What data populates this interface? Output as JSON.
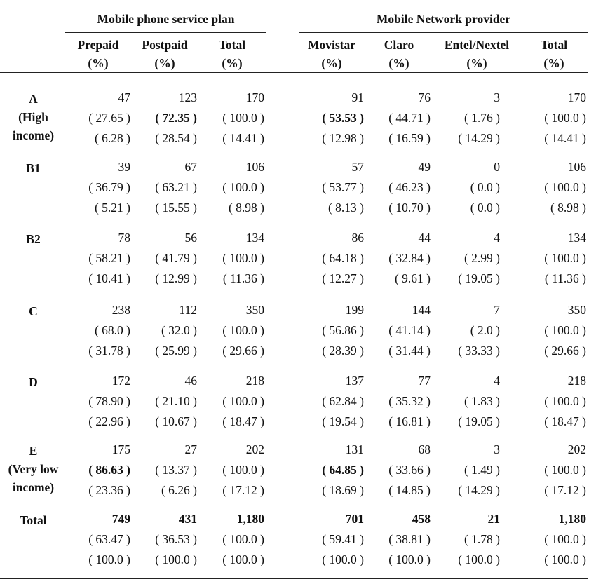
{
  "groups": {
    "plan": "Mobile phone service plan",
    "provider": "Mobile Network provider"
  },
  "columns": [
    {
      "line1": "Prepaid",
      "line2": "(%)"
    },
    {
      "line1": "Postpaid",
      "line2": "(%)"
    },
    {
      "line1": "Total",
      "line2": "(%)"
    },
    {
      "line1": "Movistar",
      "line2": "(%)"
    },
    {
      "line1": "Claro",
      "line2": "(%)"
    },
    {
      "line1": "Entel/Nextel",
      "line2": "(%)"
    },
    {
      "line1": "Total",
      "line2": "(%)"
    }
  ],
  "rows": [
    {
      "label": [
        "A",
        "(High",
        "income)"
      ],
      "values": [
        [
          "47",
          "123",
          "170",
          "91",
          "76",
          "3",
          "170"
        ],
        [
          "( 27.65 )",
          "( 72.35 )",
          "( 100.0 )",
          "( 53.53 )",
          "( 44.71 )",
          "( 1.76 )",
          "( 100.0 )"
        ],
        [
          "( 6.28 )",
          "( 28.54 )",
          "( 14.41 )",
          "( 12.98 )",
          "( 16.59 )",
          "( 14.29 )",
          "( 14.41 )"
        ]
      ],
      "bold": [
        [
          false,
          false,
          false,
          false,
          false,
          false,
          false
        ],
        [
          false,
          true,
          false,
          true,
          false,
          false,
          false
        ],
        [
          false,
          false,
          false,
          false,
          false,
          false,
          false
        ]
      ]
    },
    {
      "label": [
        "B1"
      ],
      "values": [
        [
          "39",
          "67",
          "106",
          "57",
          "49",
          "0",
          "106"
        ],
        [
          "( 36.79 )",
          "( 63.21 )",
          "( 100.0 )",
          "( 53.77 )",
          "( 46.23 )",
          "( 0.0 )",
          "( 100.0 )"
        ],
        [
          "( 5.21 )",
          "( 15.55 )",
          "( 8.98 )",
          "( 8.13 )",
          "( 10.70 )",
          "( 0.0 )",
          "( 8.98 )"
        ]
      ],
      "bold": [
        [
          false,
          false,
          false,
          false,
          false,
          false,
          false
        ],
        [
          false,
          false,
          false,
          false,
          false,
          false,
          false
        ],
        [
          false,
          false,
          false,
          false,
          false,
          false,
          false
        ]
      ]
    },
    {
      "label": [
        "B2"
      ],
      "values": [
        [
          "78",
          "56",
          "134",
          "86",
          "44",
          "4",
          "134"
        ],
        [
          "( 58.21 )",
          "( 41.79 )",
          "( 100.0 )",
          "( 64.18 )",
          "( 32.84 )",
          "( 2.99 )",
          "( 100.0 )"
        ],
        [
          "( 10.41 )",
          "( 12.99 )",
          "( 11.36 )",
          "( 12.27 )",
          "( 9.61 )",
          "( 19.05 )",
          "( 11.36 )"
        ]
      ],
      "bold": [
        [
          false,
          false,
          false,
          false,
          false,
          false,
          false
        ],
        [
          false,
          false,
          false,
          false,
          false,
          false,
          false
        ],
        [
          false,
          false,
          false,
          false,
          false,
          false,
          false
        ]
      ]
    },
    {
      "label": [
        "C"
      ],
      "values": [
        [
          "238",
          "112",
          "350",
          "199",
          "144",
          "7",
          "350"
        ],
        [
          "( 68.0 )",
          "( 32.0 )",
          "( 100.0 )",
          "( 56.86 )",
          "( 41.14 )",
          "( 2.0 )",
          "( 100.0 )"
        ],
        [
          "( 31.78 )",
          "( 25.99 )",
          "( 29.66 )",
          "( 28.39 )",
          "( 31.44 )",
          "( 33.33 )",
          "( 29.66 )"
        ]
      ],
      "bold": [
        [
          false,
          false,
          false,
          false,
          false,
          false,
          false
        ],
        [
          false,
          false,
          false,
          false,
          false,
          false,
          false
        ],
        [
          false,
          false,
          false,
          false,
          false,
          false,
          false
        ]
      ]
    },
    {
      "label": [
        "D"
      ],
      "values": [
        [
          "172",
          "46",
          "218",
          "137",
          "77",
          "4",
          "218"
        ],
        [
          "( 78.90 )",
          "( 21.10 )",
          "( 100.0 )",
          "( 62.84 )",
          "( 35.32 )",
          "( 1.83 )",
          "( 100.0 )"
        ],
        [
          "( 22.96 )",
          "( 10.67 )",
          "( 18.47 )",
          "( 19.54 )",
          "( 16.81 )",
          "( 19.05 )",
          "( 18.47 )"
        ]
      ],
      "bold": [
        [
          false,
          false,
          false,
          false,
          false,
          false,
          false
        ],
        [
          false,
          false,
          false,
          false,
          false,
          false,
          false
        ],
        [
          false,
          false,
          false,
          false,
          false,
          false,
          false
        ]
      ]
    },
    {
      "label": [
        "E",
        "(Very low",
        "income)"
      ],
      "values": [
        [
          "175",
          "27",
          "202",
          "131",
          "68",
          "3",
          "202"
        ],
        [
          "( 86.63 )",
          "( 13.37 )",
          "( 100.0 )",
          "( 64.85 )",
          "( 33.66 )",
          "( 1.49 )",
          "( 100.0 )"
        ],
        [
          "( 23.36 )",
          "( 6.26 )",
          "( 17.12 )",
          "( 18.69 )",
          "( 14.85 )",
          "( 14.29 )",
          "( 17.12 )"
        ]
      ],
      "bold": [
        [
          false,
          false,
          false,
          false,
          false,
          false,
          false
        ],
        [
          true,
          false,
          false,
          true,
          false,
          false,
          false
        ],
        [
          false,
          false,
          false,
          false,
          false,
          false,
          false
        ]
      ]
    },
    {
      "label": [
        "Total"
      ],
      "values": [
        [
          "749",
          "431",
          "1,180",
          "701",
          "458",
          "21",
          "1,180"
        ],
        [
          "( 63.47 )",
          "( 36.53 )",
          "( 100.0 )",
          "( 59.41 )",
          "( 38.81 )",
          "( 1.78 )",
          "( 100.0 )"
        ],
        [
          "( 100.0 )",
          "( 100.0 )",
          "( 100.0 )",
          "( 100.0 )",
          "( 100.0 )",
          "( 100.0 )",
          "( 100.0 )"
        ]
      ],
      "bold": [
        [
          true,
          true,
          true,
          true,
          true,
          true,
          true
        ],
        [
          false,
          false,
          false,
          false,
          false,
          false,
          false
        ],
        [
          false,
          false,
          false,
          false,
          false,
          false,
          false
        ]
      ]
    }
  ]
}
